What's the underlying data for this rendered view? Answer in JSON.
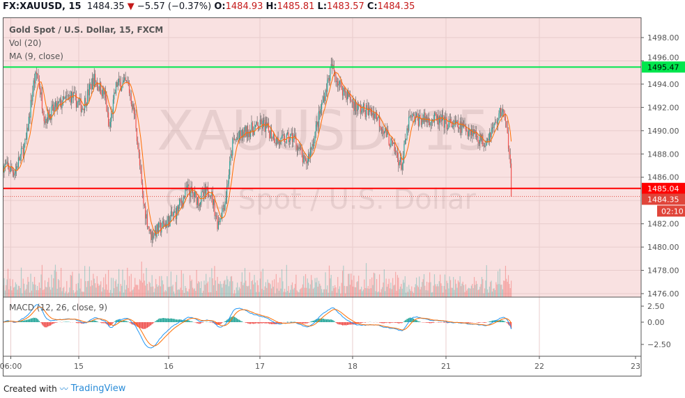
{
  "header": {
    "symbol": "FX:XAUUSD, 15",
    "last": "1484.35",
    "change": "−5.57 (−0.37%)",
    "o_label": "O:",
    "o": "1484.93",
    "h_label": "H:",
    "h": "1485.81",
    "l_label": "L:",
    "l": "1483.57",
    "c_label": "C:",
    "c": "1484.35",
    "direction_icon": "triangle-down-icon"
  },
  "legend": {
    "title": "Gold Spot / U.S. Dollar, 15, FXCM",
    "vol": "Vol (20)",
    "ma": "MA (9, close)",
    "macd": "MACD (12, 26, close, 9)"
  },
  "watermark": {
    "line1": "XAUUSD, 15",
    "line2": "Gold Spot / U.S. Dollar"
  },
  "footer": {
    "created": "Created with",
    "brand": "TradingView"
  },
  "colors": {
    "up": "#26a69a",
    "down": "#ef5350",
    "ma": "#ff6d00",
    "macd": "#2196f3",
    "signal": "#ff6d00",
    "pane_bg": "#f9e1e1",
    "green_line": "#00e64d",
    "red_line": "#ff0000"
  },
  "chart_data": {
    "type": "candlestick",
    "price_axis": {
      "range": [
        1476,
        1498
      ],
      "ticks": [
        "1498.00",
        "1496.00",
        "1494.00",
        "1492.00",
        "1490.00",
        "1488.00",
        "1486.00",
        "1482.00",
        "1480.00",
        "1478.00",
        "1476.00"
      ]
    },
    "macd_axis": {
      "ticks": [
        "2.50",
        "0.00",
        "−2.50"
      ]
    },
    "time_axis": {
      "ticks": [
        "06:00",
        "15",
        "16",
        "17",
        "18",
        "21",
        "22",
        "23"
      ]
    },
    "horizontal_lines": [
      {
        "price": 1495.47,
        "label": "1495.47",
        "color": "#00e64d"
      },
      {
        "price": 1485.04,
        "label": "1485.04",
        "color": "#ff0000"
      }
    ],
    "last_price": {
      "price": 1484.35,
      "label": "1484.35",
      "countdown": "02:10"
    },
    "approx_close_path": [
      [
        "14 04:00",
        1487
      ],
      [
        "14 07:00",
        1486.5
      ],
      [
        "14 10:00",
        1489
      ],
      [
        "14 12:00",
        1494
      ],
      [
        "14 13:00",
        1495
      ],
      [
        "14 15:00",
        1491
      ],
      [
        "14 18:00",
        1492
      ],
      [
        "14 22:00",
        1493
      ],
      [
        "15 01:00",
        1492
      ],
      [
        "15 04:00",
        1494.5
      ],
      [
        "15 07:00",
        1493
      ],
      [
        "15 08:00",
        1490
      ],
      [
        "15 10:00",
        1494
      ],
      [
        "15 13:00",
        1494
      ],
      [
        "15 15:00",
        1491
      ],
      [
        "15 17:00",
        1484
      ],
      [
        "15 19:00",
        1481
      ],
      [
        "15 23:00",
        1482
      ],
      [
        "16 02:00",
        1483
      ],
      [
        "16 05:00",
        1485
      ],
      [
        "16 08:00",
        1484
      ],
      [
        "16 11:00",
        1485
      ],
      [
        "16 13:00",
        1482
      ],
      [
        "16 15:00",
        1484
      ],
      [
        "16 17:00",
        1489
      ],
      [
        "16 21:00",
        1490
      ],
      [
        "17 01:00",
        1490.5
      ],
      [
        "17 05:00",
        1489
      ],
      [
        "17 09:00",
        1489.5
      ],
      [
        "17 12:00",
        1487
      ],
      [
        "17 14:00",
        1489
      ],
      [
        "17 17:00",
        1493
      ],
      [
        "17 19:00",
        1495.5
      ],
      [
        "17 21:00",
        1494
      ],
      [
        "18 01:00",
        1492
      ],
      [
        "18 06:00",
        1491.5
      ],
      [
        "18 10:00",
        1489
      ],
      [
        "18 13:00",
        1487
      ],
      [
        "18 15:00",
        1491
      ],
      [
        "18 21:00",
        1491
      ],
      [
        "21 02:00",
        1490.5
      ],
      [
        "21 07:00",
        1490
      ],
      [
        "21 10:00",
        1489
      ],
      [
        "21 13:00",
        1490.5
      ],
      [
        "21 15:00",
        1492
      ],
      [
        "21 17:00",
        1488
      ],
      [
        "21 17:30",
        1484.35
      ]
    ]
  }
}
